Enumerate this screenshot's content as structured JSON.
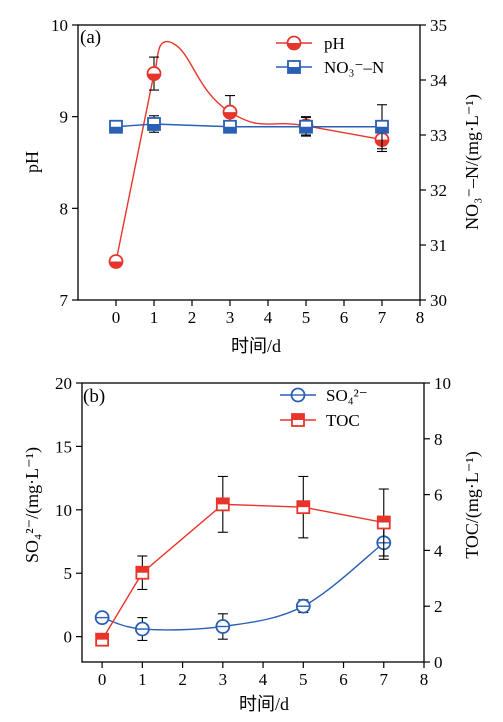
{
  "chart_data": [
    {
      "type": "line",
      "panel_label": "(a)",
      "xlabel": "时间/d",
      "ylabel_left": "pH",
      "ylabel_right": "NO₃⁻–N/(mg·L⁻¹)",
      "xlim": [
        -1,
        8
      ],
      "ylim_left": [
        7,
        10
      ],
      "ylim_right": [
        30,
        35
      ],
      "x_ticks": [
        "0",
        "1",
        "2",
        "3",
        "4",
        "5",
        "6",
        "7",
        "8"
      ],
      "y_ticks_left": [
        "7",
        "8",
        "9",
        "10"
      ],
      "y_ticks_right": [
        "30",
        "31",
        "32",
        "33",
        "34",
        "35"
      ],
      "legend_placement": "top-right",
      "series": [
        {
          "name": "pH",
          "axis": "left",
          "color": "#e8352b",
          "marker": "half-filled circle",
          "x": [
            0,
            1,
            3,
            5,
            7
          ],
          "values": [
            7.42,
            9.47,
            9.05,
            8.9,
            8.75
          ],
          "error": [
            0,
            0.18,
            0.18,
            0.1,
            0.13
          ],
          "curve_peak": [
            1.5,
            9.8
          ]
        },
        {
          "name": "NO₃⁻–N",
          "axis": "right",
          "color": "#2a5fb4",
          "marker": "half-filled square",
          "x": [
            0,
            1,
            3,
            5,
            7
          ],
          "values": [
            33.15,
            33.2,
            33.15,
            33.15,
            33.15
          ],
          "error": [
            0,
            0.15,
            0,
            0.17,
            0.4
          ]
        }
      ]
    },
    {
      "type": "line",
      "panel_label": "(b)",
      "xlabel": "时间/d",
      "ylabel_left": "SO₄²⁻/(mg·L⁻¹)",
      "ylabel_right": "TOC/(mg·L⁻¹)",
      "xlim": [
        -0.5,
        8
      ],
      "ylim_left": [
        -2,
        20
      ],
      "ylim_right": [
        0,
        10
      ],
      "x_ticks": [
        "0",
        "1",
        "2",
        "3",
        "4",
        "5",
        "6",
        "7",
        "8"
      ],
      "y_ticks_left": [
        "0",
        "5",
        "10",
        "15",
        "20"
      ],
      "y_ticks_right": [
        "0",
        "2",
        "4",
        "6",
        "8",
        "10"
      ],
      "legend_placement": "top-right",
      "series": [
        {
          "name": "SO₄²⁻",
          "axis": "left",
          "color": "#2a5fb4",
          "marker": "half-open circle",
          "x": [
            0,
            1,
            3,
            5,
            7
          ],
          "values": [
            1.5,
            0.6,
            0.8,
            2.4,
            7.4
          ],
          "error": [
            0,
            0.9,
            1.0,
            0.5,
            1.3
          ]
        },
        {
          "name": "TOC",
          "axis": "right",
          "color": "#e8352b",
          "marker": "half-filled square",
          "x": [
            0,
            1,
            3,
            5,
            7
          ],
          "values": [
            0.8,
            3.2,
            5.65,
            5.55,
            5.0
          ],
          "error": [
            0,
            0.6,
            1.0,
            1.1,
            1.2
          ]
        }
      ]
    }
  ]
}
